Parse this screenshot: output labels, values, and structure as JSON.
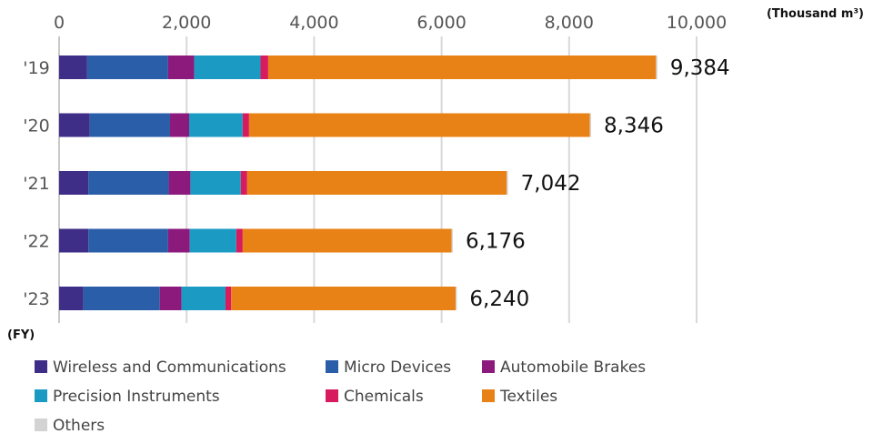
{
  "chart_data": {
    "type": "bar",
    "orientation": "horizontal",
    "stacked": true,
    "unit_label": "(Thousand m³)",
    "fy_label": "(FY)",
    "categories": [
      "'19",
      "'20",
      "'21",
      "'22",
      "'23"
    ],
    "xlim": [
      0,
      10000
    ],
    "xticks": [
      0,
      2000,
      4000,
      6000,
      8000,
      10000
    ],
    "xtick_labels": [
      "0",
      "2,000",
      "4,000",
      "6,000",
      "8,000",
      "10,000"
    ],
    "grid": "vertical",
    "legend_position": "bottom",
    "series": [
      {
        "name": "Wireless and Communications",
        "color": "#3f2e87",
        "values": [
          440,
          480,
          460,
          460,
          380
        ]
      },
      {
        "name": "Micro Devices",
        "color": "#2a5ea8",
        "values": [
          1270,
          1260,
          1260,
          1250,
          1200
        ]
      },
      {
        "name": "Automobile Brakes",
        "color": "#8c1a7d",
        "values": [
          410,
          300,
          340,
          340,
          340
        ]
      },
      {
        "name": "Precision Instruments",
        "color": "#1b9bc4",
        "values": [
          1040,
          840,
          790,
          730,
          690
        ]
      },
      {
        "name": "Chemicals",
        "color": "#d81b5e",
        "values": [
          120,
          100,
          100,
          100,
          90
        ]
      },
      {
        "name": "Textiles",
        "color": "#e98216",
        "values": [
          6084,
          5346,
          4072,
          3276,
          3520
        ]
      },
      {
        "name": "Others",
        "color": "#d3d3d3",
        "values": [
          20,
          20,
          20,
          20,
          20
        ]
      }
    ],
    "totals": [
      9384,
      8346,
      7042,
      6176,
      6240
    ],
    "total_labels": [
      "9,384",
      "8,346",
      "7,042",
      "6,176",
      "6,240"
    ]
  }
}
